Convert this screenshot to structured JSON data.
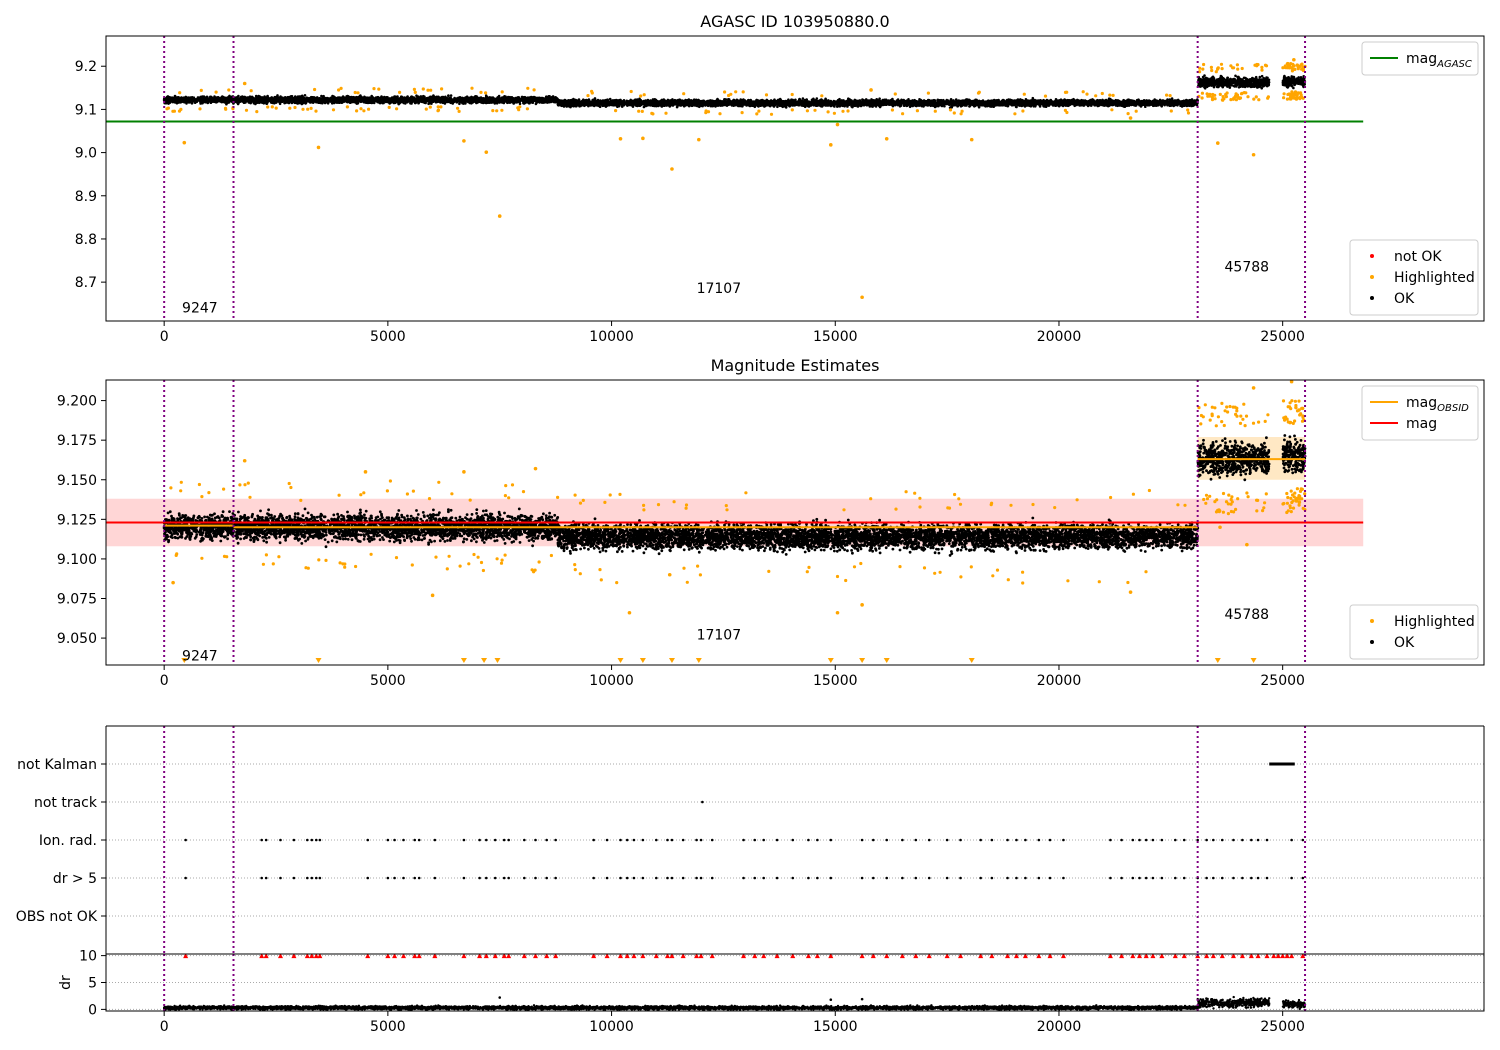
{
  "chart_data": [
    {
      "type": "scatter",
      "title": "AGASC ID 103950880.0",
      "xlim": [
        -1300,
        29500
      ],
      "ylim": [
        8.61,
        9.27
      ],
      "xticks": [
        0,
        5000,
        10000,
        15000,
        20000,
        25000
      ],
      "yticks": [
        8.7,
        8.8,
        8.9,
        9.0,
        9.1,
        9.2
      ],
      "grid": false,
      "vlines": [
        0,
        1550,
        23100,
        25500
      ],
      "annotations": [
        {
          "text": "9247",
          "x": 400,
          "y": 8.63
        },
        {
          "text": "17107",
          "x": 11900,
          "y": 8.675
        },
        {
          "text": "45788",
          "x": 23700,
          "y": 8.725
        }
      ],
      "series": [
        {
          "name": "mag_AGASC",
          "kind": "line",
          "color": "#008000",
          "x": [
            -1300,
            26800
          ],
          "y": [
            9.072,
            9.072
          ]
        },
        {
          "name": "OK",
          "kind": "band-scatter",
          "color": "#000000",
          "segments": [
            {
              "x0": 0,
              "x1": 8800,
              "center": 9.122,
              "spread": 0.013
            },
            {
              "x0": 8800,
              "x1": 23100,
              "center": 9.115,
              "spread": 0.013
            },
            {
              "x0": 23100,
              "x1": 24700,
              "center": 9.163,
              "spread": 0.02
            },
            {
              "x0": 25000,
              "x1": 25500,
              "center": 9.165,
              "spread": 0.02
            }
          ]
        },
        {
          "name": "Highlighted",
          "kind": "scatter",
          "color": "#ffa500",
          "points": [
            [
              450,
              9.023
            ],
            [
              3450,
              9.012
            ],
            [
              6700,
              9.027
            ],
            [
              7200,
              9.001
            ],
            [
              7500,
              8.853
            ],
            [
              10200,
              9.032
            ],
            [
              10700,
              9.033
            ],
            [
              11350,
              8.962
            ],
            [
              11950,
              9.03
            ],
            [
              14900,
              9.018
            ],
            [
              15050,
              9.065
            ],
            [
              15600,
              8.665
            ],
            [
              16150,
              9.032
            ],
            [
              18050,
              9.03
            ],
            [
              23550,
              9.022
            ],
            [
              24350,
              8.995
            ],
            [
              1800,
              9.16
            ],
            [
              25250,
              9.215
            ],
            [
              15800,
              9.145
            ],
            [
              21600,
              9.08
            ]
          ]
        },
        {
          "name": "not OK",
          "kind": "scatter",
          "color": "#ff0000",
          "points": []
        }
      ],
      "legends": [
        {
          "position": "top-right",
          "entries": [
            {
              "label": "mag",
              "sub": "AGASC",
              "color": "#008000",
              "kind": "line"
            }
          ]
        },
        {
          "position": "bottom-right",
          "entries": [
            {
              "label": "not OK",
              "color": "#ff0000",
              "kind": "dot"
            },
            {
              "label": "Highlighted",
              "color": "#ffa500",
              "kind": "dot"
            },
            {
              "label": "OK",
              "color": "#000000",
              "kind": "dot"
            }
          ]
        }
      ]
    },
    {
      "type": "scatter",
      "title": "Magnitude Estimates",
      "xlim": [
        -1300,
        29500
      ],
      "ylim": [
        9.033,
        9.213
      ],
      "xticks": [
        0,
        5000,
        10000,
        15000,
        20000,
        25000
      ],
      "yticks": [
        9.05,
        9.075,
        9.1,
        9.125,
        9.15,
        9.175,
        9.2
      ],
      "grid": false,
      "vlines": [
        0,
        1550,
        23100,
        25500
      ],
      "bands": [
        {
          "x0": -1300,
          "x1": 26800,
          "y0": 9.108,
          "y1": 9.138,
          "color": "#ffd6d6"
        },
        {
          "x0": 23100,
          "x1": 25500,
          "y0": 9.15,
          "y1": 9.177,
          "color": "#ffe8c4"
        }
      ],
      "annotations": [
        {
          "text": "9247",
          "x": 400,
          "y": 9.036
        },
        {
          "text": "17107",
          "x": 11900,
          "y": 9.049
        },
        {
          "text": "45788",
          "x": 23700,
          "y": 9.062
        }
      ],
      "series": [
        {
          "name": "mag",
          "kind": "line",
          "color": "#ff0000",
          "x": [
            -1300,
            26800
          ],
          "y": [
            9.123,
            9.123
          ]
        },
        {
          "name": "mag_OBSID",
          "kind": "steps",
          "color": "#ffa500",
          "steps": [
            {
              "x0": 0,
              "x1": 1550,
              "y": 9.121
            },
            {
              "x0": 1550,
              "x1": 23100,
              "y": 9.12
            },
            {
              "x0": 23100,
              "x1": 25500,
              "y": 9.163
            }
          ]
        },
        {
          "name": "OK",
          "kind": "band-scatter",
          "color": "#000000",
          "segments": [
            {
              "x0": 0,
              "x1": 8800,
              "center": 9.12,
              "spread": 0.014
            },
            {
              "x0": 8800,
              "x1": 23100,
              "center": 9.114,
              "spread": 0.014
            },
            {
              "x0": 23100,
              "x1": 24700,
              "center": 9.163,
              "spread": 0.017
            },
            {
              "x0": 25000,
              "x1": 25500,
              "center": 9.165,
              "spread": 0.017
            }
          ]
        },
        {
          "name": "Highlighted",
          "kind": "scatter",
          "color": "#ffa500",
          "points": [
            [
              200,
              9.085
            ],
            [
              1800,
              9.162
            ],
            [
              6000,
              9.077
            ],
            [
              6700,
              9.155
            ],
            [
              8300,
              9.157
            ],
            [
              10400,
              9.066
            ],
            [
              15050,
              9.066
            ],
            [
              15600,
              9.071
            ],
            [
              21600,
              9.079
            ],
            [
              23600,
              9.12
            ],
            [
              24200,
              9.109
            ],
            [
              24350,
              9.208
            ],
            [
              25200,
              9.212
            ],
            [
              4500,
              9.155
            ],
            [
              11300,
              9.09
            ]
          ]
        },
        {
          "name": "out-of-range",
          "kind": "triangles-down",
          "color": "#ffa500",
          "x": [
            450,
            3450,
            6700,
            7150,
            7450,
            10200,
            10700,
            11350,
            11950,
            14900,
            15600,
            16150,
            18050,
            23550,
            24350
          ]
        }
      ],
      "legends": [
        {
          "position": "top-right",
          "entries": [
            {
              "label": "mag",
              "sub": "OBSID",
              "color": "#ffa500",
              "kind": "line"
            },
            {
              "label": "mag",
              "color": "#ff0000",
              "kind": "line"
            }
          ]
        },
        {
          "position": "bottom-right",
          "entries": [
            {
              "label": "Highlighted",
              "color": "#ffa500",
              "kind": "dot"
            },
            {
              "label": "OK",
              "color": "#000000",
              "kind": "dot"
            }
          ]
        }
      ]
    },
    {
      "type": "scatter",
      "title": "",
      "xlim": [
        -1300,
        29500
      ],
      "categories": [
        "OBS not OK",
        "dr > 5",
        "Ion. rad.",
        "not track",
        "not Kalman"
      ],
      "vlines": [
        0,
        1550,
        23100,
        25500
      ],
      "grid": "horizontal",
      "series": [
        {
          "name": "not Kalman",
          "kind": "flags",
          "color": "#000000",
          "x": [
            24700,
            24800,
            24900,
            25000,
            25100,
            25200,
            25250
          ]
        },
        {
          "name": "not track",
          "kind": "flags",
          "color": "#000000",
          "x": [
            12030
          ]
        },
        {
          "name": "Ion. rad.",
          "kind": "flags",
          "color": "#000000",
          "x": [
            480,
            2180,
            2280,
            2600,
            2900,
            3200,
            3300,
            3400,
            3480,
            4550,
            5000,
            5150,
            5350,
            5600,
            5700,
            6050,
            6700,
            7050,
            7200,
            7400,
            7600,
            7700,
            8050,
            8300,
            8550,
            8750,
            9600,
            9900,
            10200,
            10350,
            10500,
            10700,
            11000,
            11250,
            11350,
            11600,
            11900,
            12000,
            12250,
            12950,
            13200,
            13400,
            13700,
            14050,
            14400,
            14600,
            14900,
            15600,
            15850,
            16150,
            16500,
            16800,
            17100,
            17500,
            17800,
            18250,
            18500,
            18850,
            19050,
            19250,
            19550,
            19800,
            20100,
            21150,
            21400,
            21650,
            21800,
            21950,
            22100,
            22300,
            22600,
            22800,
            23100,
            23300,
            23450,
            23650,
            23900,
            24100,
            24300,
            24450,
            24650,
            25200,
            25450
          ]
        },
        {
          "name": "dr > 5",
          "kind": "flags",
          "color": "#000000",
          "x": [
            480,
            2180,
            2280,
            2600,
            2900,
            3200,
            3300,
            3400,
            3480,
            4550,
            5000,
            5150,
            5350,
            5600,
            5700,
            6050,
            6700,
            7050,
            7200,
            7400,
            7600,
            7700,
            8050,
            8300,
            8550,
            8750,
            9600,
            9900,
            10200,
            10350,
            10500,
            10700,
            11000,
            11250,
            11350,
            11600,
            11900,
            12000,
            12250,
            12950,
            13200,
            13400,
            13700,
            14050,
            14400,
            14600,
            14900,
            15600,
            15850,
            16150,
            16500,
            16800,
            17100,
            17500,
            17800,
            18250,
            18500,
            18850,
            19050,
            19250,
            19550,
            19800,
            20100,
            21150,
            21400,
            21650,
            21800,
            21950,
            22100,
            22300,
            22600,
            22800,
            23100,
            23300,
            23450,
            23650,
            23900,
            24100,
            24300,
            24450,
            24650,
            25200,
            25450
          ]
        },
        {
          "name": "OBS not OK",
          "kind": "flags",
          "color": "#000000",
          "x": []
        }
      ]
    },
    {
      "type": "scatter",
      "title": "",
      "ylabel": "dr",
      "xlim": [
        -1300,
        29500
      ],
      "ylim": [
        -0.3,
        10.3
      ],
      "xticks": [
        0,
        5000,
        10000,
        15000,
        20000,
        25000
      ],
      "xtick_labels": [
        "0",
        "5000",
        "10000",
        "15000",
        "20000",
        "25000"
      ],
      "yticks": [
        0,
        5,
        10
      ],
      "grid": "horizontal",
      "vlines": [
        0,
        1550,
        23100,
        25500
      ],
      "series": [
        {
          "name": "dr",
          "kind": "band-scatter",
          "color": "#000000",
          "segments": [
            {
              "x0": 0,
              "x1": 23100,
              "center": 0.3,
              "spread": 0.3
            },
            {
              "x0": 23100,
              "x1": 24700,
              "center": 1.2,
              "spread": 0.8
            },
            {
              "x0": 25000,
              "x1": 25500,
              "center": 0.9,
              "spread": 0.7
            }
          ],
          "extra": [
            [
              7500,
              2.2
            ],
            [
              14900,
              1.8
            ],
            [
              15600,
              1.9
            ]
          ]
        },
        {
          "name": "dr clipped",
          "kind": "triangles-up",
          "color": "#ff0000",
          "x": [
            480,
            2180,
            2280,
            2600,
            2900,
            3200,
            3300,
            3400,
            3480,
            4550,
            5000,
            5150,
            5350,
            5600,
            5700,
            6050,
            6700,
            7050,
            7200,
            7400,
            7600,
            7700,
            8050,
            8300,
            8550,
            8750,
            9600,
            9900,
            10200,
            10350,
            10500,
            10700,
            11000,
            11250,
            11350,
            11600,
            11900,
            12000,
            12250,
            12950,
            13200,
            13400,
            13700,
            14050,
            14400,
            14600,
            14900,
            15600,
            15850,
            16150,
            16500,
            16800,
            17100,
            17500,
            17800,
            18250,
            18500,
            18850,
            19050,
            19250,
            19550,
            19800,
            20100,
            21150,
            21400,
            21650,
            21800,
            21950,
            22100,
            22300,
            22600,
            22800,
            23100,
            23300,
            23450,
            23650,
            23900,
            24100,
            24300,
            24450,
            24650,
            24800,
            24900,
            25000,
            25100,
            25200,
            25450
          ]
        }
      ]
    }
  ]
}
